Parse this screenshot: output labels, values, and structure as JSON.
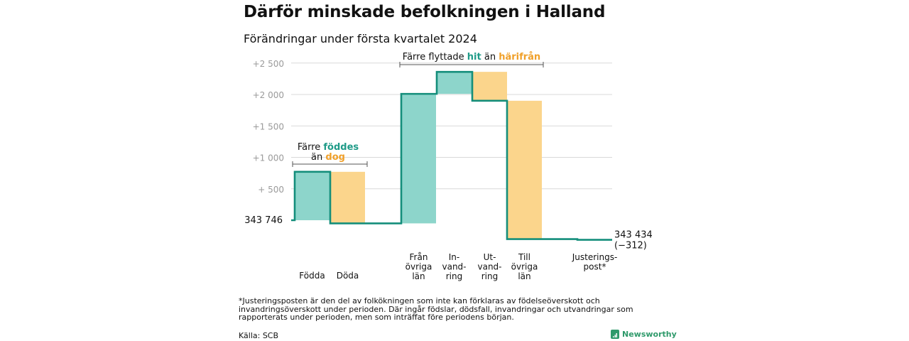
{
  "title": "Därför minskade befolkningen i Halland",
  "subtitle": "Förändringar under första kvartalet 2024",
  "colors": {
    "positive": "#8dd5cb",
    "negative": "#fbd58c",
    "line": "#148e7b",
    "accent_green": "#1f9b88",
    "accent_orange": "#f0a02a",
    "grid": "#d9d9d9",
    "tick": "#9a9a9a"
  },
  "annotations": {
    "births_deaths": {
      "line1_prefix": "Färre ",
      "line1_highlight": "föddes",
      "line2_prefix": "än ",
      "line2_highlight": "dog"
    },
    "migration": {
      "prefix": "Färre flyttade",
      "highlight1": "hit",
      "middle": "än",
      "highlight2": "härifrån"
    }
  },
  "start_label": "343 746",
  "end_label": {
    "value": "343 434",
    "change": "(−312)"
  },
  "chart_data": {
    "type": "waterfall",
    "title": "Därför minskade befolkningen i Halland",
    "subtitle": "Förändringar under första kvartalet 2024",
    "start_value": 343746,
    "end_value": 343434,
    "net_change": -312,
    "y_axis": {
      "ticks": [
        "+ 500",
        "+1 000",
        "+1 500",
        "+2 000",
        "+2 500"
      ],
      "tick_values": [
        500,
        1000,
        1500,
        2000,
        2500
      ],
      "range": [
        -500,
        2550
      ],
      "baseline": 0
    },
    "grid": true,
    "categories": [
      {
        "label": [
          "Födda"
        ],
        "change": 770,
        "color_key": "positive"
      },
      {
        "label": [
          "Döda"
        ],
        "change": -820,
        "color_key": "negative"
      },
      {
        "label": [
          "Från",
          "övriga",
          "län"
        ],
        "change": 2060,
        "color_key": "positive"
      },
      {
        "label": [
          "In-",
          "vand-",
          "ring"
        ],
        "change": 350,
        "color_key": "positive"
      },
      {
        "label": [
          "Ut-",
          "vand-",
          "ring"
        ],
        "change": -460,
        "color_key": "negative"
      },
      {
        "label": [
          "Till",
          "övriga",
          "län"
        ],
        "change": -2200,
        "color_key": "negative"
      },
      {
        "label": [
          "Justerings-",
          "post*"
        ],
        "change": -12,
        "color_key": "negative"
      }
    ]
  },
  "footnote": "*Justeringsposten är den del av folkökningen som inte kan förklaras av födelseöverskott och invandringsöverskott under perioden. Där ingår födslar, dödsfall, invandringar och utvandringar som rapporterats under perioden, men som inträffat före periodens början.",
  "source": "Källa: SCB",
  "brand": "Newsworthy"
}
